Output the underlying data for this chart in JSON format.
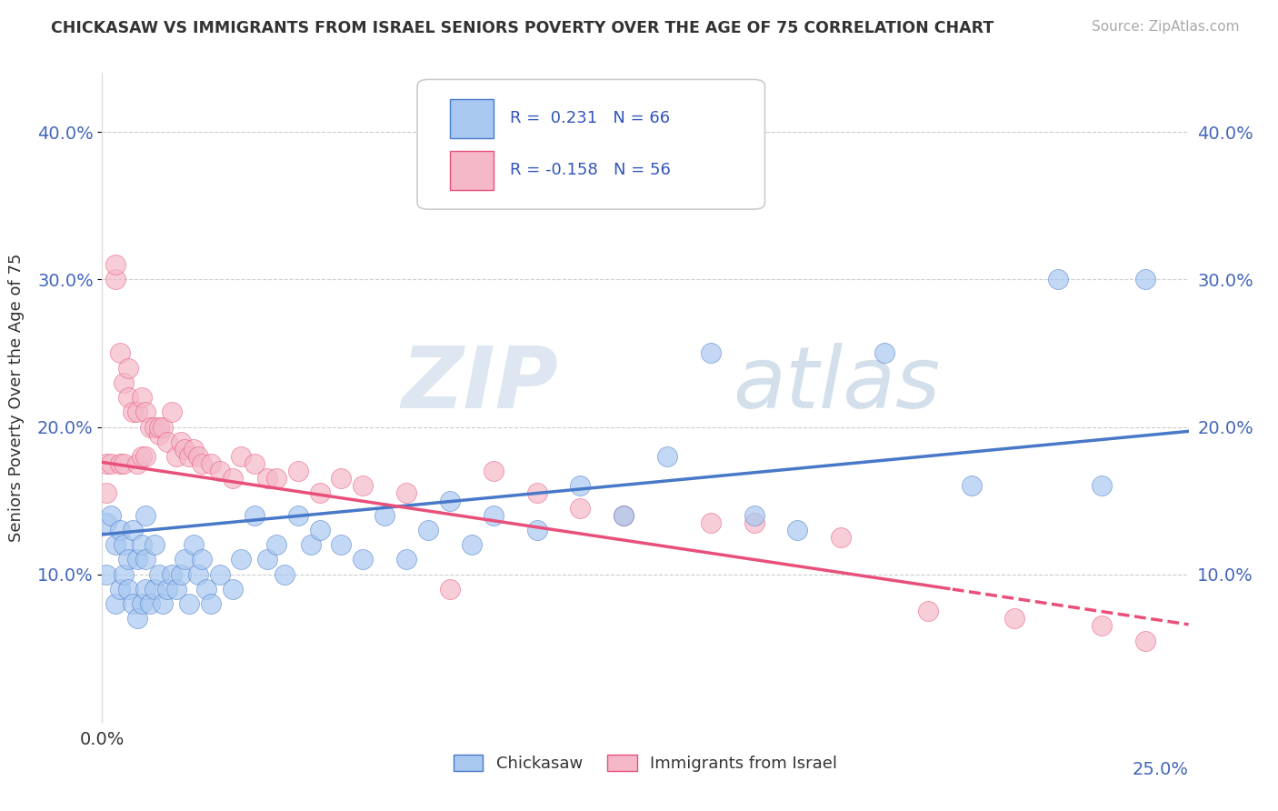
{
  "title": "CHICKASAW VS IMMIGRANTS FROM ISRAEL SENIORS POVERTY OVER THE AGE OF 75 CORRELATION CHART",
  "source": "Source: ZipAtlas.com",
  "ylabel": "Seniors Poverty Over the Age of 75",
  "background_color": "#ffffff",
  "grid_color": "#cccccc",
  "chickasaw_color": "#a8c8f0",
  "israel_color": "#f4b8c8",
  "chickasaw_line_color": "#4878c8",
  "israel_line_color": "#e8507a",
  "legend_R_chickasaw": "0.231",
  "legend_N_chickasaw": "66",
  "legend_R_israel": "-0.158",
  "legend_N_israel": "56",
  "watermark_zip": "ZIP",
  "watermark_atlas": "atlas",
  "xlim": [
    0.0,
    0.25
  ],
  "ylim": [
    0.0,
    0.44
  ],
  "yticks": [
    0.1,
    0.2,
    0.3,
    0.4
  ],
  "ytick_labels": [
    "10.0%",
    "20.0%",
    "30.0%",
    "40.0%"
  ],
  "chickasaw_x": [
    0.001,
    0.001,
    0.002,
    0.003,
    0.003,
    0.004,
    0.004,
    0.005,
    0.005,
    0.006,
    0.006,
    0.007,
    0.007,
    0.008,
    0.008,
    0.009,
    0.009,
    0.01,
    0.01,
    0.01,
    0.011,
    0.012,
    0.012,
    0.013,
    0.014,
    0.015,
    0.016,
    0.017,
    0.018,
    0.019,
    0.02,
    0.021,
    0.022,
    0.023,
    0.024,
    0.025,
    0.027,
    0.03,
    0.032,
    0.035,
    0.038,
    0.04,
    0.042,
    0.045,
    0.048,
    0.05,
    0.055,
    0.06,
    0.065,
    0.07,
    0.075,
    0.08,
    0.085,
    0.09,
    0.1,
    0.11,
    0.12,
    0.13,
    0.14,
    0.15,
    0.16,
    0.18,
    0.2,
    0.22,
    0.23,
    0.24
  ],
  "chickasaw_y": [
    0.135,
    0.1,
    0.14,
    0.08,
    0.12,
    0.09,
    0.13,
    0.1,
    0.12,
    0.09,
    0.11,
    0.08,
    0.13,
    0.07,
    0.11,
    0.08,
    0.12,
    0.09,
    0.11,
    0.14,
    0.08,
    0.09,
    0.12,
    0.1,
    0.08,
    0.09,
    0.1,
    0.09,
    0.1,
    0.11,
    0.08,
    0.12,
    0.1,
    0.11,
    0.09,
    0.08,
    0.1,
    0.09,
    0.11,
    0.14,
    0.11,
    0.12,
    0.1,
    0.14,
    0.12,
    0.13,
    0.12,
    0.11,
    0.14,
    0.11,
    0.13,
    0.15,
    0.12,
    0.14,
    0.13,
    0.16,
    0.14,
    0.18,
    0.25,
    0.14,
    0.13,
    0.25,
    0.16,
    0.3,
    0.16,
    0.3
  ],
  "israel_x": [
    0.001,
    0.001,
    0.002,
    0.003,
    0.003,
    0.004,
    0.004,
    0.005,
    0.005,
    0.006,
    0.006,
    0.007,
    0.008,
    0.008,
    0.009,
    0.009,
    0.01,
    0.01,
    0.011,
    0.012,
    0.013,
    0.013,
    0.014,
    0.015,
    0.016,
    0.017,
    0.018,
    0.019,
    0.02,
    0.021,
    0.022,
    0.023,
    0.025,
    0.027,
    0.03,
    0.032,
    0.035,
    0.038,
    0.04,
    0.045,
    0.05,
    0.055,
    0.06,
    0.07,
    0.08,
    0.09,
    0.1,
    0.11,
    0.12,
    0.14,
    0.15,
    0.17,
    0.19,
    0.21,
    0.23,
    0.24
  ],
  "israel_y": [
    0.175,
    0.155,
    0.175,
    0.3,
    0.31,
    0.175,
    0.25,
    0.23,
    0.175,
    0.24,
    0.22,
    0.21,
    0.21,
    0.175,
    0.22,
    0.18,
    0.18,
    0.21,
    0.2,
    0.2,
    0.195,
    0.2,
    0.2,
    0.19,
    0.21,
    0.18,
    0.19,
    0.185,
    0.18,
    0.185,
    0.18,
    0.175,
    0.175,
    0.17,
    0.165,
    0.18,
    0.175,
    0.165,
    0.165,
    0.17,
    0.155,
    0.165,
    0.16,
    0.155,
    0.09,
    0.17,
    0.155,
    0.145,
    0.14,
    0.135,
    0.135,
    0.125,
    0.075,
    0.07,
    0.065,
    0.055
  ]
}
